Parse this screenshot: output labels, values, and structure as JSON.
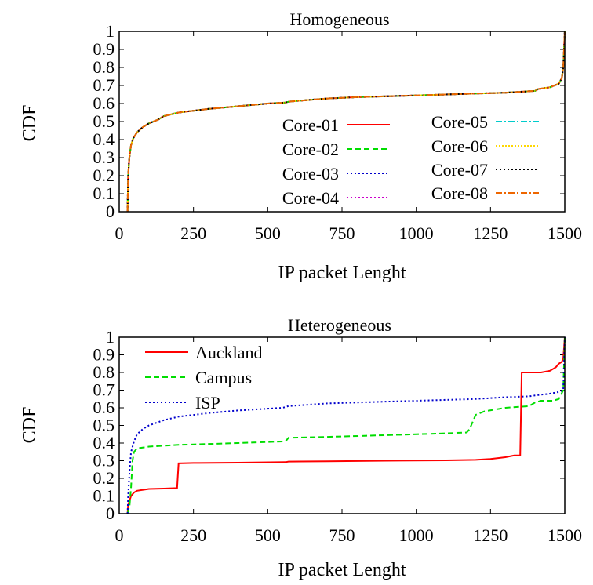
{
  "chart_data": [
    {
      "type": "line",
      "title": "Homogeneous",
      "xlabel": "IP packet Lenght",
      "ylabel": "CDF",
      "xlim": [
        0,
        1500
      ],
      "ylim": [
        0,
        1
      ],
      "xticks": [
        "0",
        "250",
        "500",
        "750",
        "1000",
        "1250",
        "1500"
      ],
      "yticks": [
        "0",
        "0.1",
        "0.2",
        "0.3",
        "0.4",
        "0.5",
        "0.6",
        "0.7",
        "0.8",
        "0.9",
        "1"
      ],
      "grid": false,
      "legend": "inside-lower-right, two columns",
      "series": [
        {
          "name": "Core-01",
          "color": "#ff0000",
          "dash": "solid",
          "x": [
            28,
            30,
            34,
            40,
            48,
            60,
            80,
            100,
            130,
            150,
            200,
            250,
            300,
            400,
            500,
            560,
            570,
            600,
            700,
            800,
            900,
            1000,
            1100,
            1200,
            1300,
            1400,
            1410,
            1450,
            1480,
            1490,
            1495,
            1500
          ],
          "y": [
            0,
            0.2,
            0.3,
            0.37,
            0.41,
            0.44,
            0.47,
            0.49,
            0.51,
            0.53,
            0.55,
            0.56,
            0.57,
            0.585,
            0.6,
            0.605,
            0.61,
            0.615,
            0.628,
            0.635,
            0.64,
            0.645,
            0.65,
            0.655,
            0.66,
            0.67,
            0.68,
            0.69,
            0.71,
            0.74,
            0.8,
            1
          ]
        },
        {
          "name": "Core-02",
          "color": "#00dd00",
          "dash": "dashed",
          "x": [
            28,
            30,
            34,
            40,
            48,
            60,
            80,
            100,
            130,
            150,
            200,
            250,
            300,
            400,
            500,
            560,
            570,
            600,
            700,
            800,
            900,
            1000,
            1100,
            1200,
            1300,
            1400,
            1410,
            1450,
            1480,
            1490,
            1495,
            1500
          ],
          "y": [
            0,
            0.2,
            0.3,
            0.37,
            0.41,
            0.44,
            0.47,
            0.49,
            0.51,
            0.53,
            0.55,
            0.56,
            0.57,
            0.585,
            0.6,
            0.605,
            0.61,
            0.615,
            0.628,
            0.635,
            0.64,
            0.645,
            0.65,
            0.655,
            0.66,
            0.67,
            0.68,
            0.69,
            0.71,
            0.74,
            0.8,
            1
          ]
        },
        {
          "name": "Core-03",
          "color": "#0000cc",
          "dash": "dotted",
          "x": [
            28,
            30,
            34,
            40,
            48,
            60,
            80,
            100,
            130,
            150,
            200,
            250,
            300,
            400,
            500,
            560,
            570,
            600,
            700,
            800,
            900,
            1000,
            1100,
            1200,
            1300,
            1400,
            1410,
            1450,
            1480,
            1490,
            1495,
            1500
          ],
          "y": [
            0,
            0.2,
            0.3,
            0.37,
            0.41,
            0.44,
            0.47,
            0.49,
            0.51,
            0.53,
            0.55,
            0.56,
            0.57,
            0.585,
            0.6,
            0.605,
            0.61,
            0.615,
            0.628,
            0.635,
            0.64,
            0.645,
            0.65,
            0.655,
            0.66,
            0.67,
            0.68,
            0.69,
            0.71,
            0.74,
            0.8,
            1
          ]
        },
        {
          "name": "Core-04",
          "color": "#cc00cc",
          "dash": "dotted",
          "x": [
            28,
            30,
            34,
            40,
            48,
            60,
            80,
            100,
            130,
            150,
            200,
            250,
            300,
            400,
            500,
            560,
            570,
            600,
            700,
            800,
            900,
            1000,
            1100,
            1200,
            1300,
            1400,
            1410,
            1450,
            1480,
            1490,
            1495,
            1500
          ],
          "y": [
            0,
            0.2,
            0.3,
            0.37,
            0.41,
            0.44,
            0.47,
            0.49,
            0.51,
            0.53,
            0.55,
            0.56,
            0.57,
            0.585,
            0.6,
            0.605,
            0.61,
            0.615,
            0.628,
            0.635,
            0.64,
            0.645,
            0.65,
            0.655,
            0.66,
            0.67,
            0.68,
            0.69,
            0.71,
            0.74,
            0.8,
            1
          ]
        },
        {
          "name": "Core-05",
          "color": "#00cccc",
          "dash": "dashdot",
          "x": [
            28,
            30,
            34,
            40,
            48,
            60,
            80,
            100,
            130,
            150,
            200,
            250,
            300,
            400,
            500,
            560,
            570,
            600,
            700,
            800,
            900,
            1000,
            1100,
            1200,
            1300,
            1400,
            1410,
            1450,
            1480,
            1490,
            1495,
            1500
          ],
          "y": [
            0,
            0.2,
            0.3,
            0.37,
            0.41,
            0.44,
            0.47,
            0.49,
            0.51,
            0.53,
            0.55,
            0.56,
            0.57,
            0.585,
            0.6,
            0.605,
            0.61,
            0.615,
            0.628,
            0.635,
            0.64,
            0.645,
            0.65,
            0.655,
            0.66,
            0.67,
            0.68,
            0.69,
            0.71,
            0.74,
            0.8,
            1
          ]
        },
        {
          "name": "Core-06",
          "color": "#ffd700",
          "dash": "dotdot",
          "x": [
            28,
            30,
            34,
            40,
            48,
            60,
            80,
            100,
            130,
            150,
            200,
            250,
            300,
            400,
            500,
            560,
            570,
            600,
            700,
            800,
            900,
            1000,
            1100,
            1200,
            1300,
            1400,
            1410,
            1450,
            1480,
            1490,
            1495,
            1500
          ],
          "y": [
            0,
            0.2,
            0.3,
            0.37,
            0.41,
            0.44,
            0.47,
            0.49,
            0.51,
            0.53,
            0.55,
            0.56,
            0.57,
            0.585,
            0.6,
            0.605,
            0.61,
            0.615,
            0.628,
            0.635,
            0.64,
            0.645,
            0.65,
            0.655,
            0.66,
            0.67,
            0.68,
            0.69,
            0.71,
            0.74,
            0.8,
            1
          ]
        },
        {
          "name": "Core-07",
          "color": "#000000",
          "dash": "dotted",
          "x": [
            28,
            30,
            34,
            40,
            48,
            60,
            80,
            100,
            130,
            150,
            200,
            250,
            300,
            400,
            500,
            560,
            570,
            600,
            700,
            800,
            900,
            1000,
            1100,
            1200,
            1300,
            1400,
            1410,
            1450,
            1480,
            1490,
            1495,
            1500
          ],
          "y": [
            0,
            0.2,
            0.3,
            0.37,
            0.41,
            0.44,
            0.47,
            0.49,
            0.51,
            0.53,
            0.55,
            0.56,
            0.57,
            0.585,
            0.6,
            0.605,
            0.61,
            0.615,
            0.628,
            0.635,
            0.64,
            0.645,
            0.65,
            0.655,
            0.66,
            0.67,
            0.68,
            0.69,
            0.71,
            0.74,
            0.8,
            1
          ]
        },
        {
          "name": "Core-08",
          "color": "#ee6600",
          "dash": "dashdot",
          "x": [
            28,
            30,
            34,
            40,
            48,
            60,
            80,
            100,
            130,
            150,
            200,
            250,
            300,
            400,
            500,
            560,
            570,
            600,
            700,
            800,
            900,
            1000,
            1100,
            1200,
            1300,
            1400,
            1410,
            1450,
            1480,
            1490,
            1495,
            1500
          ],
          "y": [
            0,
            0.2,
            0.3,
            0.37,
            0.41,
            0.44,
            0.47,
            0.49,
            0.51,
            0.53,
            0.55,
            0.56,
            0.57,
            0.585,
            0.6,
            0.605,
            0.61,
            0.615,
            0.628,
            0.635,
            0.64,
            0.645,
            0.65,
            0.655,
            0.66,
            0.67,
            0.68,
            0.69,
            0.71,
            0.74,
            0.8,
            1
          ]
        }
      ]
    },
    {
      "type": "line",
      "title": "Heterogeneous",
      "xlabel": "IP packet Lenght",
      "ylabel": "CDF",
      "xlim": [
        0,
        1500
      ],
      "ylim": [
        0,
        1
      ],
      "xticks": [
        "0",
        "250",
        "500",
        "750",
        "1000",
        "1250",
        "1500"
      ],
      "yticks": [
        "0",
        "0.1",
        "0.2",
        "0.3",
        "0.4",
        "0.5",
        "0.6",
        "0.7",
        "0.8",
        "0.9",
        "1"
      ],
      "grid": false,
      "legend": "inside-top-left",
      "series": [
        {
          "name": "Auckland",
          "color": "#ff0000",
          "dash": "solid",
          "x": [
            28,
            30,
            40,
            50,
            60,
            80,
            100,
            150,
            195,
            200,
            250,
            400,
            560,
            570,
            700,
            900,
            1100,
            1200,
            1250,
            1300,
            1330,
            1335,
            1350,
            1355,
            1400,
            1420,
            1450,
            1470,
            1480,
            1490,
            1495,
            1500
          ],
          "y": [
            0,
            0.05,
            0.1,
            0.12,
            0.13,
            0.135,
            0.14,
            0.142,
            0.145,
            0.285,
            0.287,
            0.289,
            0.292,
            0.295,
            0.297,
            0.3,
            0.302,
            0.305,
            0.31,
            0.32,
            0.33,
            0.33,
            0.33,
            0.8,
            0.8,
            0.8,
            0.81,
            0.83,
            0.85,
            0.86,
            0.88,
            1
          ]
        },
        {
          "name": "Campus",
          "color": "#00dd00",
          "dash": "dashed",
          "x": [
            28,
            35,
            40,
            45,
            50,
            55,
            60,
            100,
            200,
            400,
            560,
            570,
            700,
            900,
            1100,
            1170,
            1180,
            1190,
            1200,
            1230,
            1300,
            1380,
            1400,
            1420,
            1460,
            1480,
            1495,
            1500
          ],
          "y": [
            0,
            0.05,
            0.15,
            0.3,
            0.35,
            0.36,
            0.37,
            0.38,
            0.39,
            0.4,
            0.41,
            0.43,
            0.435,
            0.445,
            0.455,
            0.46,
            0.48,
            0.52,
            0.56,
            0.58,
            0.6,
            0.61,
            0.63,
            0.64,
            0.64,
            0.65,
            0.7,
            1
          ]
        },
        {
          "name": "ISP",
          "color": "#0000cc",
          "dash": "dotted",
          "x": [
            28,
            30,
            35,
            40,
            50,
            60,
            80,
            100,
            150,
            200,
            300,
            400,
            550,
            570,
            700,
            900,
            1100,
            1200,
            1300,
            1380,
            1400,
            1450,
            1480,
            1495,
            1500
          ],
          "y": [
            0,
            0.1,
            0.25,
            0.35,
            0.41,
            0.45,
            0.48,
            0.5,
            0.53,
            0.55,
            0.57,
            0.585,
            0.6,
            0.61,
            0.625,
            0.635,
            0.645,
            0.65,
            0.66,
            0.665,
            0.67,
            0.68,
            0.69,
            0.7,
            1
          ]
        }
      ]
    }
  ]
}
